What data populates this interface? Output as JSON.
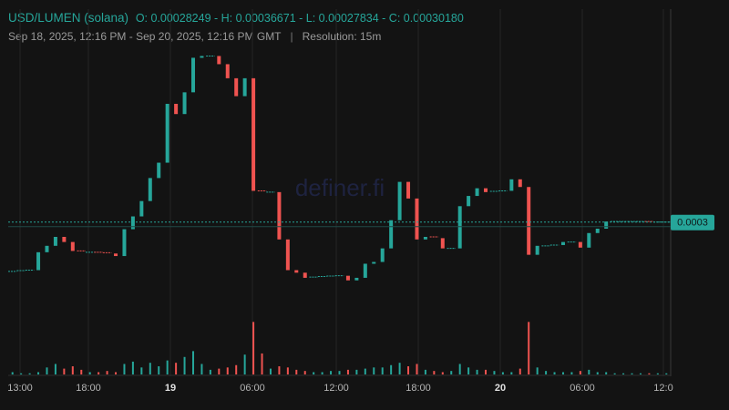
{
  "header": {
    "pair": "USD/LUMEN (solana)",
    "ohlc": "O: 0.00028249 - H: 0.00036671 - L: 0.00027834 - C: 0.00030180",
    "range": "Sep 18, 2025, 12:16 PM - Sep 20, 2025, 12:16 PM GMT",
    "separator": "|",
    "resolution": "Resolution: 15m"
  },
  "watermark": "definer.fi",
  "price_tag": "0.0003",
  "colors": {
    "up": "#26a69a",
    "down": "#ef5350",
    "background": "#131313",
    "grid": "#262626"
  },
  "chart_data": {
    "type": "candlestick",
    "title": "USD/LUMEN (solana)",
    "resolution": "15m",
    "x_ticks": [
      {
        "label": "13:00",
        "bold": false
      },
      {
        "label": "18:00",
        "bold": false
      },
      {
        "label": "19",
        "bold": true
      },
      {
        "label": "06:00",
        "bold": false
      },
      {
        "label": "12:00",
        "bold": false
      },
      {
        "label": "18:00",
        "bold": false
      },
      {
        "label": "20",
        "bold": true
      },
      {
        "label": "06:00",
        "bold": false
      },
      {
        "label": "12:0",
        "bold": false
      }
    ],
    "ylim": [
      0.00027,
      0.000369
    ],
    "last_price": 0.0003018,
    "candles": [
      {
        "o": 0.000282,
        "c": 0.0002825
      },
      {
        "o": 0.0002825,
        "c": 0.0002828
      },
      {
        "o": 0.0002828,
        "c": 0.000283
      },
      {
        "o": 0.000283,
        "c": 0.00029
      },
      {
        "o": 0.00029,
        "c": 0.0002925
      },
      {
        "o": 0.0002925,
        "c": 0.000296
      },
      {
        "o": 0.000296,
        "c": 0.000294
      },
      {
        "o": 0.000294,
        "c": 0.0002905
      },
      {
        "o": 0.0002905,
        "c": 0.00029
      },
      {
        "o": 0.00029,
        "c": 0.00029
      },
      {
        "o": 0.00029,
        "c": 0.0002898
      },
      {
        "o": 0.0002898,
        "c": 0.0002895
      },
      {
        "o": 0.0002895,
        "c": 0.0002885
      },
      {
        "o": 0.0002885,
        "c": 0.000299
      },
      {
        "o": 0.000299,
        "c": 0.000304
      },
      {
        "o": 0.000304,
        "c": 0.00031
      },
      {
        "o": 0.00031,
        "c": 0.000319
      },
      {
        "o": 0.000319,
        "c": 0.000325
      },
      {
        "o": 0.000325,
        "c": 0.000348
      },
      {
        "o": 0.000348,
        "c": 0.000344
      },
      {
        "o": 0.000344,
        "c": 0.0003525
      },
      {
        "o": 0.0003525,
        "c": 0.000366
      },
      {
        "o": 0.000366,
        "c": 0.0003667
      },
      {
        "o": 0.0003667,
        "c": 0.0003667
      },
      {
        "o": 0.0003667,
        "c": 0.0003635
      },
      {
        "o": 0.0003635,
        "c": 0.000358
      },
      {
        "o": 0.000358,
        "c": 0.000351
      },
      {
        "o": 0.000351,
        "c": 0.000358
      },
      {
        "o": 0.000358,
        "c": 0.000314
      },
      {
        "o": 0.000314,
        "c": 0.0003135
      },
      {
        "o": 0.0003135,
        "c": 0.0003135
      },
      {
        "o": 0.0003135,
        "c": 0.000295
      },
      {
        "o": 0.000295,
        "c": 0.000283
      },
      {
        "o": 0.000283,
        "c": 0.000282
      },
      {
        "o": 0.000282,
        "c": 0.00028
      },
      {
        "o": 0.00028,
        "c": 0.0002803
      },
      {
        "o": 0.0002803,
        "c": 0.0002805
      },
      {
        "o": 0.0002805,
        "c": 0.0002807
      },
      {
        "o": 0.0002807,
        "c": 0.0002808
      },
      {
        "o": 0.0002808,
        "c": 0.000279
      },
      {
        "o": 0.000279,
        "c": 0.00028
      },
      {
        "o": 0.00028,
        "c": 0.0002855
      },
      {
        "o": 0.0002855,
        "c": 0.0002862
      },
      {
        "o": 0.0002862,
        "c": 0.0002915
      },
      {
        "o": 0.0002915,
        "c": 0.0003025
      },
      {
        "o": 0.0003025,
        "c": 0.0003175
      },
      {
        "o": 0.0003175,
        "c": 0.000311
      },
      {
        "o": 0.000311,
        "c": 0.000295
      },
      {
        "o": 0.000295,
        "c": 0.000296
      },
      {
        "o": 0.000296,
        "c": 0.0002955
      },
      {
        "o": 0.0002955,
        "c": 0.0002915
      },
      {
        "o": 0.0002915,
        "c": 0.0002915
      },
      {
        "o": 0.0002915,
        "c": 0.000308
      },
      {
        "o": 0.000308,
        "c": 0.000312
      },
      {
        "o": 0.000312,
        "c": 0.000315
      },
      {
        "o": 0.000315,
        "c": 0.0003135
      },
      {
        "o": 0.0003135,
        "c": 0.0003138
      },
      {
        "o": 0.0003138,
        "c": 0.000314
      },
      {
        "o": 0.000314,
        "c": 0.0003185
      },
      {
        "o": 0.0003185,
        "c": 0.0003155
      },
      {
        "o": 0.0003155,
        "c": 0.000289
      },
      {
        "o": 0.000289,
        "c": 0.0002925
      },
      {
        "o": 0.0002925,
        "c": 0.0002925
      },
      {
        "o": 0.0002925,
        "c": 0.0002928
      },
      {
        "o": 0.0002928,
        "c": 0.000294
      },
      {
        "o": 0.000294,
        "c": 0.000294
      },
      {
        "o": 0.000294,
        "c": 0.0002918
      },
      {
        "o": 0.0002918,
        "c": 0.0002975
      },
      {
        "o": 0.0002975,
        "c": 0.0002992
      },
      {
        "o": 0.0002992,
        "c": 0.000302
      },
      {
        "o": 0.000302,
        "c": 0.000302
      },
      {
        "o": 0.000302,
        "c": 0.000302
      },
      {
        "o": 0.000302,
        "c": 0.000302
      },
      {
        "o": 0.000302,
        "c": 0.000302
      },
      {
        "o": 0.000302,
        "c": 0.0003018
      },
      {
        "o": 0.0003018,
        "c": 0.0003018
      },
      {
        "o": 0.0003018,
        "c": 0.0003018
      }
    ],
    "volume": [
      0.02,
      0.01,
      0.01,
      0.02,
      0.06,
      0.09,
      0.05,
      0.07,
      0.04,
      0.02,
      0.02,
      0.03,
      0.02,
      0.09,
      0.11,
      0.06,
      0.1,
      0.07,
      0.12,
      0.1,
      0.15,
      0.2,
      0.09,
      0.04,
      0.05,
      0.06,
      0.08,
      0.17,
      0.45,
      0.18,
      0.05,
      0.07,
      0.06,
      0.04,
      0.03,
      0.02,
      0.02,
      0.03,
      0.03,
      0.04,
      0.04,
      0.05,
      0.06,
      0.06,
      0.08,
      0.1,
      0.07,
      0.09,
      0.04,
      0.03,
      0.02,
      0.03,
      0.09,
      0.06,
      0.04,
      0.04,
      0.03,
      0.02,
      0.02,
      0.05,
      0.45,
      0.06,
      0.03,
      0.02,
      0.02,
      0.02,
      0.03,
      0.04,
      0.02,
      0.02,
      0.01,
      0.01,
      0.01,
      0.01,
      0.01,
      0.01,
      0.01
    ]
  }
}
